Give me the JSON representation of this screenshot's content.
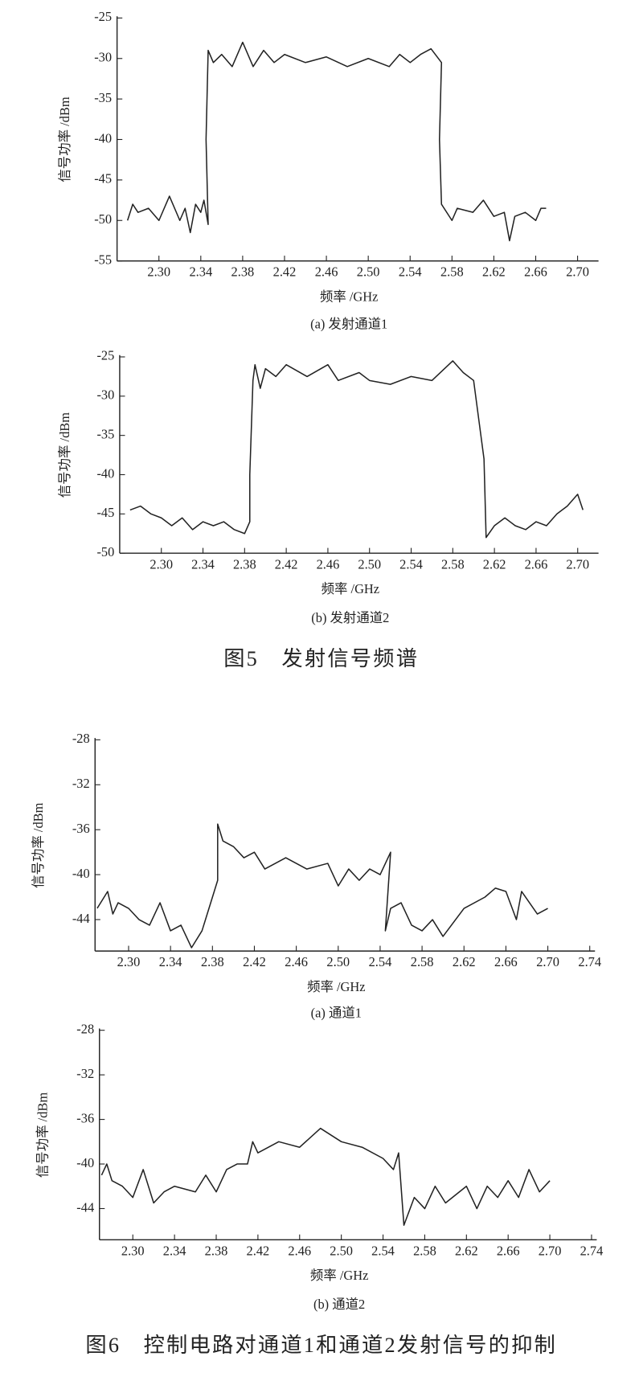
{
  "chart_data": [
    {
      "type": "line",
      "subtitle": "(a)  发射通道1",
      "xlabel": "频率  /GHz",
      "ylabel": "信号功率 /dBm",
      "color": "#222222",
      "xlim": [
        2.26,
        2.72
      ],
      "ylim": [
        -55,
        -25
      ],
      "xticks": [
        {
          "value": 2.3,
          "label": "2.30"
        },
        2.34,
        2.38,
        2.42,
        2.46,
        {
          "value": 2.5,
          "label": "2.50"
        },
        2.54,
        2.58,
        2.62,
        2.66,
        {
          "value": 2.7,
          "label": "2.70"
        }
      ],
      "yticks": [
        -55,
        -50,
        -45,
        -40,
        -35,
        -30,
        -25
      ],
      "x": [
        2.27,
        2.275,
        2.28,
        2.29,
        2.3,
        2.31,
        2.32,
        2.325,
        2.33,
        2.335,
        2.34,
        2.343,
        2.347,
        2.345,
        2.347,
        2.352,
        2.36,
        2.37,
        2.38,
        2.39,
        2.4,
        2.41,
        2.42,
        2.44,
        2.46,
        2.48,
        2.5,
        2.52,
        2.53,
        2.54,
        2.55,
        2.56,
        2.57,
        2.568,
        2.57,
        2.58,
        2.585,
        2.6,
        2.61,
        2.62,
        2.63,
        2.635,
        2.64,
        2.65,
        2.66,
        2.665,
        2.67
      ],
      "values": [
        -50,
        -48,
        -49,
        -48.5,
        -50,
        -47,
        -50,
        -48.5,
        -51.5,
        -48,
        -49,
        -47.5,
        -50.5,
        -40,
        -29,
        -30.5,
        -29.5,
        -31,
        -28,
        -31,
        -29,
        -30.5,
        -29.5,
        -30.5,
        -29.8,
        -31,
        -30,
        -31,
        -29.5,
        -30.5,
        -29.5,
        -28.8,
        -30.5,
        -40,
        -48,
        -50,
        -48.5,
        -49,
        -47.5,
        -49.5,
        -49,
        -52.5,
        -49.5,
        -49,
        -50,
        -48.5,
        -48.5
      ]
    },
    {
      "type": "line",
      "subtitle": "(b)  发射通道2",
      "xlabel": "频率  /GHz",
      "ylabel": "信号功率 /dBm",
      "color": "#222222",
      "xlim": [
        2.26,
        2.72
      ],
      "ylim": [
        -50,
        -25
      ],
      "xticks": [
        {
          "value": 2.3,
          "label": "2.30"
        },
        2.34,
        2.38,
        2.42,
        2.46,
        {
          "value": 2.5,
          "label": "2.50"
        },
        2.54,
        2.58,
        2.62,
        2.66,
        {
          "value": 2.7,
          "label": "2.70"
        }
      ],
      "yticks": [
        -50,
        -45,
        -40,
        -35,
        -30,
        -25
      ],
      "x": [
        2.27,
        2.28,
        2.29,
        2.3,
        2.31,
        2.32,
        2.33,
        2.34,
        2.35,
        2.36,
        2.37,
        2.38,
        2.385,
        2.385,
        2.388,
        2.39,
        2.395,
        2.4,
        2.41,
        2.42,
        2.44,
        2.46,
        2.47,
        2.49,
        2.5,
        2.52,
        2.54,
        2.56,
        2.58,
        2.59,
        2.6,
        2.605,
        2.61,
        2.612,
        2.62,
        2.63,
        2.64,
        2.65,
        2.66,
        2.67,
        2.68,
        2.69,
        2.7,
        2.705
      ],
      "values": [
        -44.5,
        -44,
        -45,
        -45.5,
        -46.5,
        -45.5,
        -47,
        -46,
        -46.5,
        -46,
        -47,
        -47.5,
        -46,
        -40,
        -28,
        -26,
        -29,
        -26.5,
        -27.5,
        -26,
        -27.5,
        -26,
        -28,
        -27,
        -28,
        -28.5,
        -27.5,
        -28,
        -25.5,
        -27,
        -28,
        -33,
        -38,
        -48,
        -46.5,
        -45.5,
        -46.5,
        -47,
        -46,
        -46.5,
        -45,
        -44,
        -42.5,
        -44.5
      ]
    },
    {
      "type": "line",
      "subtitle": "(a)  通道1",
      "xlabel": "频率  /GHz",
      "ylabel": "信号功率 /dBm",
      "color": "#222222",
      "xlim": [
        2.268,
        2.745
      ],
      "ylim": [
        -46.8,
        -28
      ],
      "xticks": [
        {
          "value": 2.3,
          "label": "2.30"
        },
        2.34,
        2.38,
        2.42,
        2.46,
        {
          "value": 2.5,
          "label": "2.50"
        },
        2.54,
        2.58,
        2.62,
        2.66,
        {
          "value": 2.7,
          "label": "2.70"
        },
        2.74
      ],
      "yticks": [
        -44,
        -40,
        -36,
        -32,
        -28
      ],
      "x": [
        2.27,
        2.28,
        2.285,
        2.29,
        2.3,
        2.31,
        2.32,
        2.33,
        2.34,
        2.35,
        2.36,
        2.37,
        2.38,
        2.385,
        2.385,
        2.39,
        2.4,
        2.41,
        2.42,
        2.43,
        2.45,
        2.47,
        2.49,
        2.5,
        2.51,
        2.52,
        2.53,
        2.54,
        2.55,
        2.545,
        2.55,
        2.56,
        2.57,
        2.58,
        2.59,
        2.6,
        2.62,
        2.64,
        2.65,
        2.66,
        2.67,
        2.675,
        2.69,
        2.7
      ],
      "values": [
        -43,
        -41.5,
        -43.5,
        -42.5,
        -43,
        -44,
        -44.5,
        -42.5,
        -45,
        -44.5,
        -46.5,
        -45,
        -42,
        -40.5,
        -35.5,
        -37,
        -37.5,
        -38.5,
        -38,
        -39.5,
        -38.5,
        -39.5,
        -39,
        -41,
        -39.5,
        -40.5,
        -39.5,
        -40,
        -38,
        -45,
        -43,
        -42.5,
        -44.5,
        -45,
        -44,
        -45.5,
        -43,
        -42,
        -41.2,
        -41.5,
        -44,
        -41.5,
        -43.5,
        -43
      ]
    },
    {
      "type": "line",
      "subtitle": "(b)  通道2",
      "xlabel": "频率  /GHz",
      "ylabel": "信号功率 /dBm",
      "color": "#222222",
      "xlim": [
        2.268,
        2.745
      ],
      "ylim": [
        -46.8,
        -28
      ],
      "xticks": [
        {
          "value": 2.3,
          "label": "2.30"
        },
        2.34,
        2.38,
        2.42,
        2.46,
        {
          "value": 2.5,
          "label": "2.50"
        },
        2.54,
        2.58,
        2.62,
        2.66,
        {
          "value": 2.7,
          "label": "2.70"
        },
        2.74
      ],
      "yticks": [
        -44,
        -40,
        -36,
        -32,
        -28
      ],
      "x": [
        2.27,
        2.275,
        2.28,
        2.29,
        2.3,
        2.31,
        2.32,
        2.33,
        2.34,
        2.36,
        2.37,
        2.38,
        2.39,
        2.4,
        2.41,
        2.415,
        2.42,
        2.44,
        2.46,
        2.48,
        2.5,
        2.52,
        2.54,
        2.55,
        2.555,
        2.56,
        2.57,
        2.58,
        2.59,
        2.6,
        2.62,
        2.63,
        2.64,
        2.65,
        2.66,
        2.67,
        2.68,
        2.69,
        2.7
      ],
      "values": [
        -41,
        -40,
        -41.5,
        -42,
        -43,
        -40.5,
        -43.5,
        -42.5,
        -42,
        -42.5,
        -41,
        -42.5,
        -40.5,
        -40,
        -40,
        -38,
        -39,
        -38,
        -38.5,
        -36.8,
        -38,
        -38.5,
        -39.5,
        -40.5,
        -39,
        -45.5,
        -43,
        -44,
        -42,
        -43.5,
        -42,
        -44,
        -42,
        -43,
        -41.5,
        -43,
        -40.5,
        -42.5,
        -41.5
      ]
    }
  ],
  "captions": [
    "图5　发射信号频谱",
    "图6　控制电路对通道1和通道2发射信号的抑制"
  ]
}
